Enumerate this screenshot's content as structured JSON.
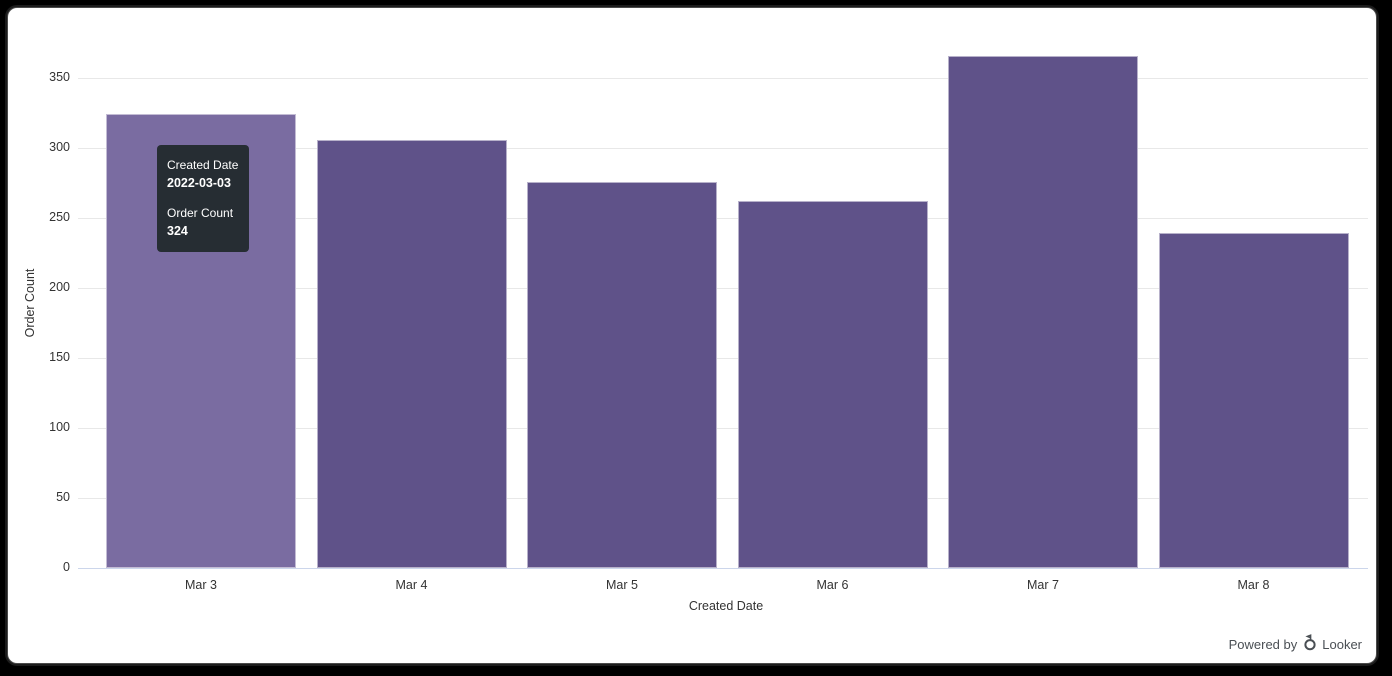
{
  "frame": {
    "background_color": "#000000",
    "card_background_color": "#ffffff"
  },
  "chart_data": {
    "type": "bar",
    "title": "",
    "categories": [
      "Mar 3",
      "Mar 4",
      "Mar 5",
      "Mar 6",
      "Mar 7",
      "Mar 8"
    ],
    "values": [
      324,
      306,
      276,
      262,
      366,
      239
    ],
    "xlabel": "Created Date",
    "ylabel": "Order Count",
    "ylim": [
      0,
      375
    ],
    "yticks": [
      0,
      50,
      100,
      150,
      200,
      250,
      300,
      350
    ],
    "grid": true,
    "legend": "none",
    "bar_color": "#5f5289",
    "hovered_bar_color": "#7a6ca1",
    "hovered_index": 0,
    "gridline_color": "#e8e8e8",
    "baseline_color": "#ccd6eb",
    "tick_label_color": "#333333"
  },
  "tooltip": {
    "label1": "Created Date",
    "value1": "2022-03-03",
    "label2": "Order Count",
    "value2": "324",
    "background": "#262d33",
    "text_color": "#ffffff"
  },
  "footer": {
    "powered_by_label": "Powered by",
    "brand_label": "Looker",
    "text_color": "#4a4f54"
  }
}
